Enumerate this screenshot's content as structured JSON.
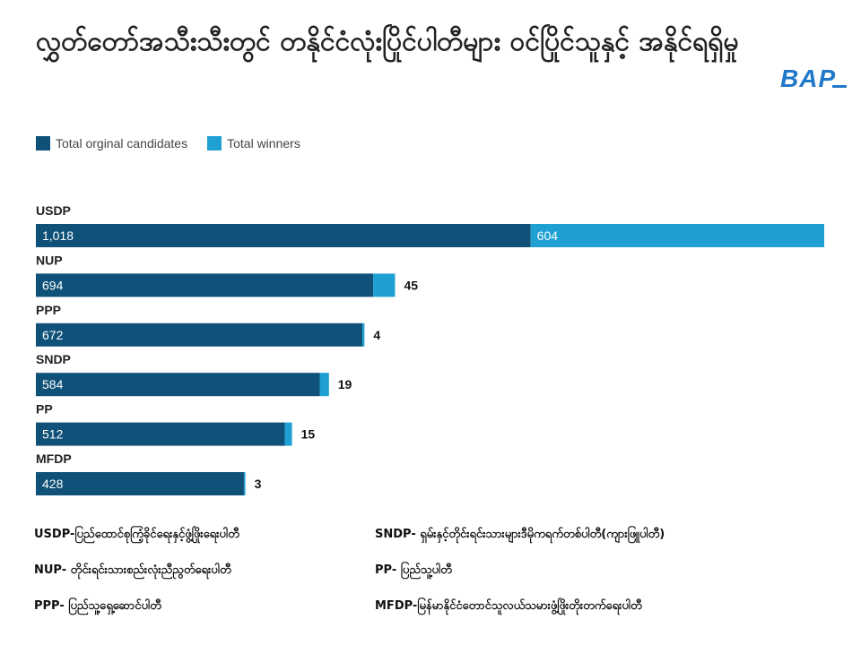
{
  "title": "လွှတ်တော်အသီးသီးတွင် တနိုင်ငံလုံးပြိုင်ပါတီများ ဝင်ပြိုင်သူနှင့် အနိုင်ရရှိမှု",
  "logo_text": "BAP",
  "colors": {
    "candidates": "#0f5178",
    "winners": "#1ea0d2",
    "logo": "#1f78c8"
  },
  "legend": [
    {
      "label": "Total orginal candidates",
      "color": "#0f5178"
    },
    {
      "label": "Total winners",
      "color": "#1ea0d2"
    }
  ],
  "chart_data": {
    "type": "bar",
    "orientation": "horizontal",
    "stacked": true,
    "categories": [
      "USDP",
      "NUP",
      "PPP",
      "SNDP",
      "PP",
      "MFDP"
    ],
    "series": [
      {
        "name": "Total orginal candidates",
        "values": [
          1018,
          694,
          672,
          584,
          512,
          428
        ]
      },
      {
        "name": "Total winners",
        "values": [
          604,
          45,
          4,
          19,
          15,
          3
        ]
      }
    ],
    "value_labels": {
      "candidates": [
        "1,018",
        "694",
        "672",
        "584",
        "512",
        "428"
      ],
      "winners": [
        "604",
        "45",
        "4",
        "19",
        "15",
        "3"
      ]
    },
    "legend_position": "top-left",
    "grid": false
  },
  "notes": [
    "USDP-ပြည်ထောင်စုကြံ့ခိုင်ရေးနှင့်ဖွံ့ဖြိုးရေးပါတီ",
    "SNDP- ရှမ်းနှင့်တိုင်းရင်းသားများဒီမိုကရက်တစ်ပါတီ(ကျားဖြူပါတီ)",
    "NUP- တိုင်းရင်းသားစည်းလုံးညီညွတ်ရေးပါတီ",
    "PP- ပြည်သူ့ပါတီ",
    "PPP- ပြည်သူ့ရှေ့ဆောင်ပါတီ",
    "MFDP-မြန်မာနိုင်ငံတောင်သူလယ်သမားဖွံ့ဖြိုးတိုးတက်ရေးပါတီ"
  ]
}
